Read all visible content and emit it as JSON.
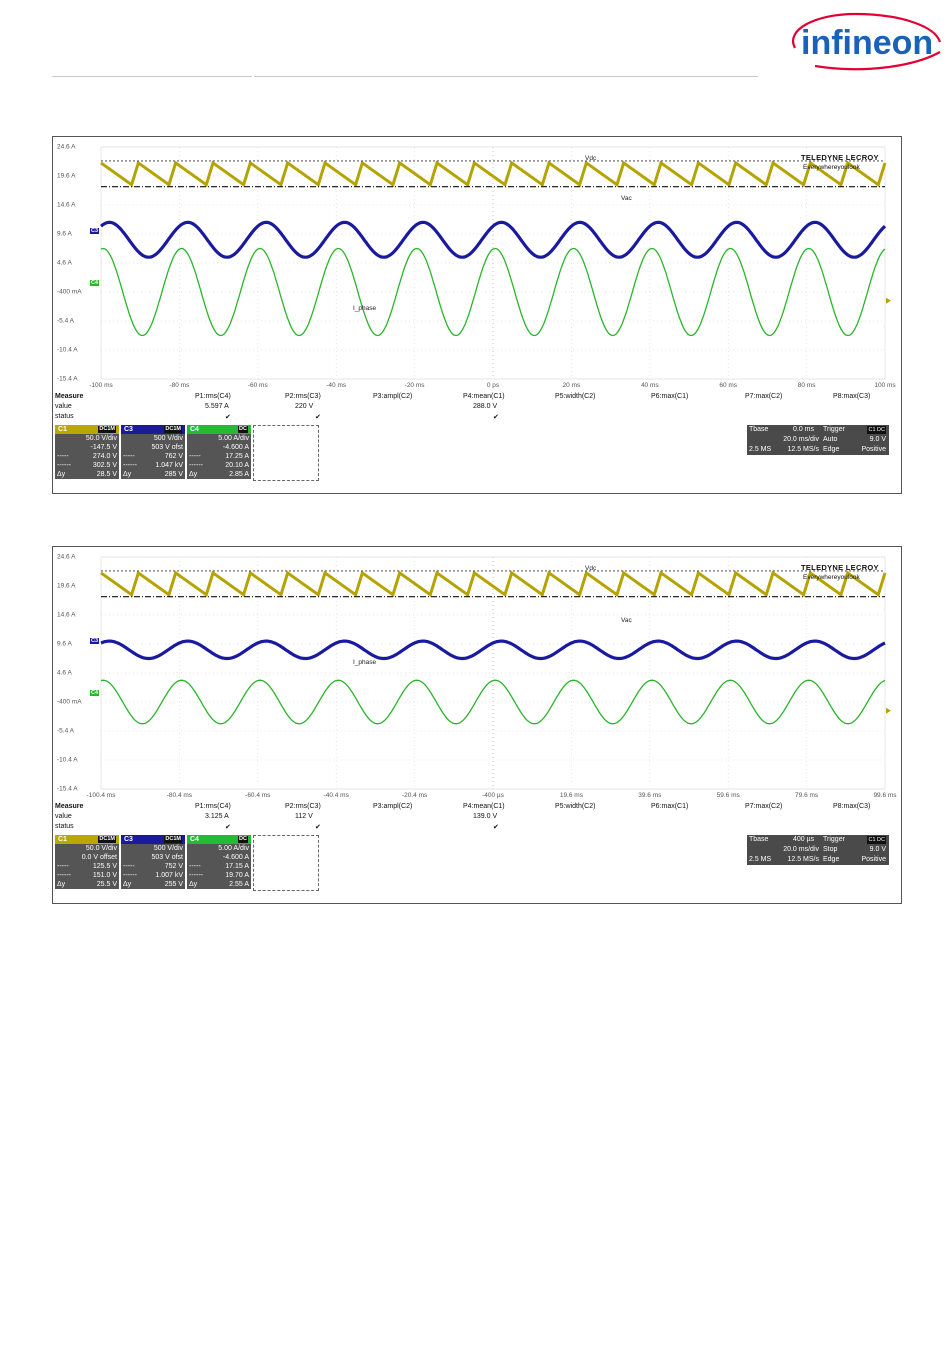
{
  "header": {
    "logo_text": "infineon"
  },
  "scopes": [
    {
      "brand": "TELEDYNE LECROY",
      "tagline": "Everywhereyoulook",
      "y_labels": [
        "24.6 A",
        "19.6 A",
        "14.6 A",
        "9.6 A",
        "4.6 A",
        "-400 mA",
        "-5.4 A",
        "-10.4 A",
        "-15.4 A"
      ],
      "x_labels": [
        "-100 ms",
        "-80 ms",
        "-60 ms",
        "-40 ms",
        "-20 ms",
        "0 ps",
        "20 ms",
        "40 ms",
        "60 ms",
        "80 ms",
        "100 ms"
      ],
      "trace_labels": {
        "vdc": "Vdc",
        "vac": "Vac",
        "iphase": "I_phase"
      },
      "channel_markers": {
        "c3": "C3",
        "c4": "C4",
        "c1": "C1"
      },
      "waveforms": {
        "vdc": {
          "top": 0.42,
          "bottom": 0.62,
          "cycles": 21
        },
        "vac": {
          "center": 0.0,
          "amplitude": 0.6,
          "cycles": 10
        },
        "iphase": {
          "center": 0.0,
          "amplitude": 1.5,
          "cycles": 10
        }
      },
      "measure": {
        "title": "Measure",
        "row_value": "value",
        "row_status": "status",
        "params": [
          "P1:rms(C4)",
          "P2:rms(C3)",
          "P3:ampl(C2)",
          "P4:mean(C1)",
          "P5:width(C2)",
          "P6:max(C1)",
          "P7:max(C2)",
          "P8:max(C3)"
        ],
        "values": [
          "5.597 A",
          "220 V",
          "",
          "288.0 V",
          "",
          "",
          "",
          ""
        ],
        "status": [
          "✔",
          "✔",
          "",
          "✔",
          "",
          "",
          "",
          ""
        ]
      },
      "channels": [
        {
          "name": "C1",
          "badge": "DC1M",
          "color": "#b8a800",
          "lines": [
            [
              "",
              "50.0 V/div"
            ],
            [
              "",
              "-147.5 V"
            ],
            [
              "-----",
              "274.0 V"
            ],
            [
              "------",
              "302.5 V"
            ],
            [
              "Δy",
              "28.5 V"
            ]
          ]
        },
        {
          "name": "C3",
          "badge": "DC1M",
          "color": "#1a1a9a",
          "lines": [
            [
              "",
              "500 V/div"
            ],
            [
              "",
              "503 V ofst"
            ],
            [
              "-----",
              "762 V"
            ],
            [
              "------",
              "1.047 kV"
            ],
            [
              "Δy",
              "285 V"
            ]
          ]
        },
        {
          "name": "C4",
          "badge": "DC",
          "color": "#22bb33",
          "lines": [
            [
              "",
              "5.00 A/div"
            ],
            [
              "",
              "-4.600 A"
            ],
            [
              "-----",
              "17.25 A"
            ],
            [
              "------",
              "20.10 A"
            ],
            [
              "Δy",
              "2.85 A"
            ]
          ]
        }
      ],
      "timebase": {
        "tbase_label": "Tbase",
        "tbase_value": "0.0 ms",
        "trigger_label": "Trigger",
        "trigger_badge": "C1 DC",
        "rows": [
          [
            "",
            "20.0 ms/div",
            "Auto",
            "9.0 V"
          ],
          [
            "2.5 MS",
            "12.5 MS/s",
            "Edge",
            "Positive"
          ]
        ]
      }
    },
    {
      "brand": "TELEDYNE LECROY",
      "tagline": "Everywhereyoulook",
      "y_labels": [
        "24.6 A",
        "19.6 A",
        "14.6 A",
        "9.6 A",
        "4.6 A",
        "-400 mA",
        "-5.4 A",
        "-10.4 A",
        "-15.4 A"
      ],
      "x_labels": [
        "-100.4 ms",
        "-80.4 ms",
        "-60.4 ms",
        "-40.4 ms",
        "-20.4 ms",
        "-400 µs",
        "19.6 ms",
        "39.6 ms",
        "59.6 ms",
        "79.6 ms",
        "99.6 ms"
      ],
      "trace_labels": {
        "vdc": "Vdc",
        "vac": "Vac",
        "iphase": "I_phase"
      },
      "channel_markers": {
        "c3": "C3",
        "c4": "C4",
        "c1": "C1"
      },
      "waveforms": {
        "vdc": {
          "top": 0.42,
          "bottom": 0.62,
          "cycles": 21
        },
        "vac": {
          "center": 0.0,
          "amplitude": 0.3,
          "cycles": 10
        },
        "iphase": {
          "center": 0.0,
          "amplitude": 0.75,
          "cycles": 10
        }
      },
      "measure": {
        "title": "Measure",
        "row_value": "value",
        "row_status": "status",
        "params": [
          "P1:rms(C4)",
          "P2:rms(C3)",
          "P3:ampl(C2)",
          "P4:mean(C1)",
          "P5:width(C2)",
          "P6:max(C1)",
          "P7:max(C2)",
          "P8:max(C3)"
        ],
        "values": [
          "3.125 A",
          "112 V",
          "",
          "139.0 V",
          "",
          "",
          "",
          ""
        ],
        "status": [
          "✔",
          "✔",
          "",
          "✔",
          "",
          "",
          "",
          ""
        ]
      },
      "channels": [
        {
          "name": "C1",
          "badge": "DC1M",
          "color": "#b8a800",
          "lines": [
            [
              "",
              "50.0 V/div"
            ],
            [
              "",
              "0.0 V offset"
            ],
            [
              "-----",
              "125.5 V"
            ],
            [
              "------",
              "151.0 V"
            ],
            [
              "Δy",
              "25.5 V"
            ]
          ]
        },
        {
          "name": "C3",
          "badge": "DC1M",
          "color": "#1a1a9a",
          "lines": [
            [
              "",
              "500 V/div"
            ],
            [
              "",
              "503 V ofst"
            ],
            [
              "-----",
              "752 V"
            ],
            [
              "------",
              "1.007 kV"
            ],
            [
              "Δy",
              "255 V"
            ]
          ]
        },
        {
          "name": "C4",
          "badge": "DC",
          "color": "#22bb33",
          "lines": [
            [
              "",
              "5.00 A/div"
            ],
            [
              "",
              "-4.600 A"
            ],
            [
              "-----",
              "17.15 A"
            ],
            [
              "------",
              "19.70 A"
            ],
            [
              "Δy",
              "2.55 A"
            ]
          ]
        }
      ],
      "timebase": {
        "tbase_label": "Tbase",
        "tbase_value": "400 µs",
        "trigger_label": "Trigger",
        "trigger_badge": "C1 DC",
        "rows": [
          [
            "",
            "20.0 ms/div",
            "Stop",
            "9.0 V"
          ],
          [
            "2.5 MS",
            "12.5 MS/s",
            "Edge",
            "Positive"
          ]
        ]
      }
    }
  ]
}
